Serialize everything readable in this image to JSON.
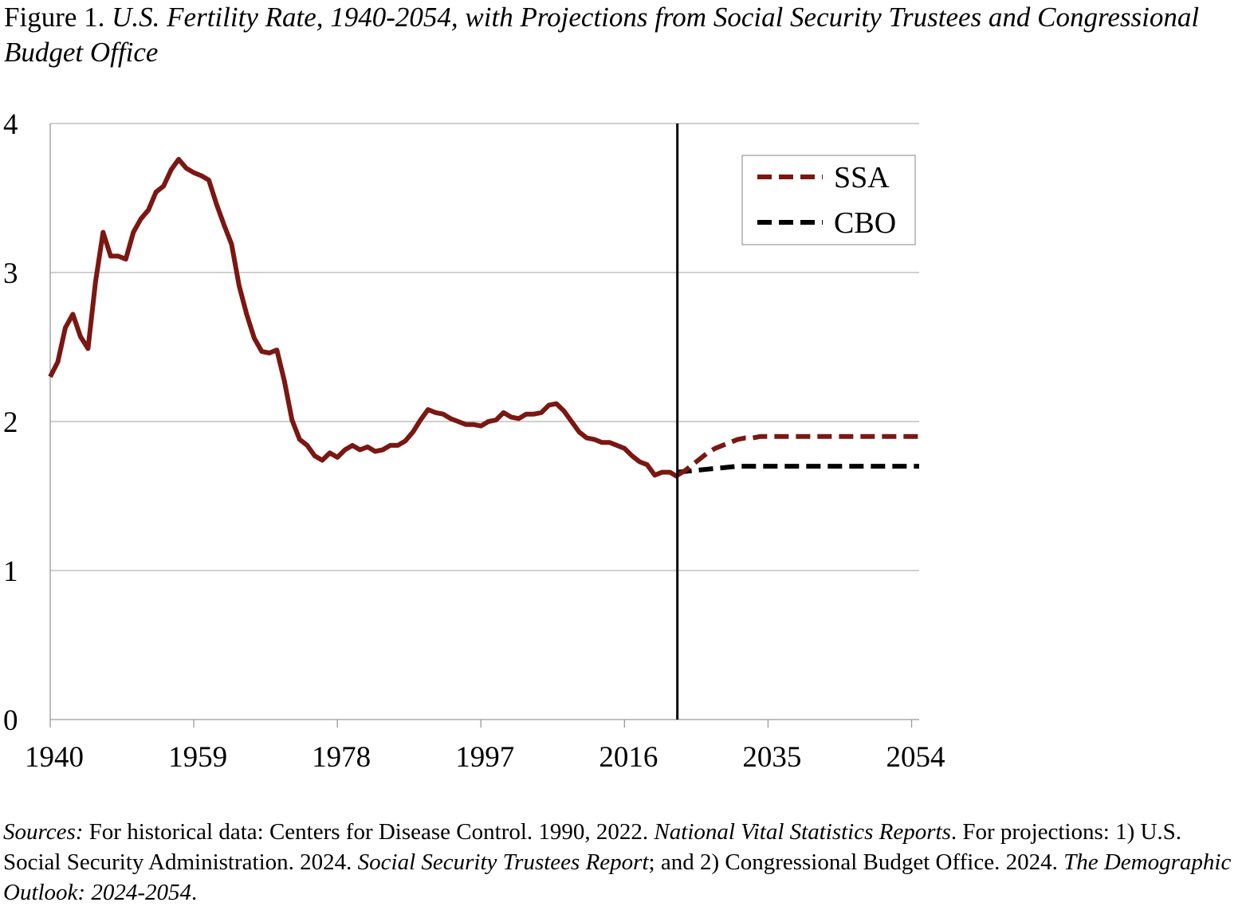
{
  "title": {
    "prefix": "Figure 1. ",
    "italic": "U.S. Fertility Rate, 1940-2054, with Projections from Social Security Trustees and Congressional Budget Office"
  },
  "sources": {
    "label": "Sources:",
    "t1": " For historical data: Centers for Disease Control. 1990, 2022. ",
    "i1": "National Vital Statistics Reports",
    "t2": ".  For projections: 1) U.S. Social Security Administration. 2024. ",
    "i2": "Social Security Trustees Report",
    "t3": "; and 2) Congressional Budget Office. 2024. ",
    "i3": "The Demographic Outlook: 2024-2054",
    "t4": "."
  },
  "chart_data": {
    "type": "line",
    "title": "U.S. Fertility Rate, 1940-2054, with Projections from Social Security Trustees and Congressional Budget Office",
    "xlabel": "",
    "ylabel": "",
    "xlim": [
      1940,
      2055
    ],
    "ylim": [
      0,
      4
    ],
    "x_ticks": [
      1940,
      1959,
      1978,
      1997,
      2016,
      2035,
      2054
    ],
    "y_ticks": [
      0,
      1,
      2,
      3,
      4
    ],
    "grid": "horizontal",
    "legend": "top-right",
    "vertical_marker_year": 2023,
    "colors": {
      "historical": "#7B1712",
      "ssa": "#7B1712",
      "cbo": "#000000",
      "grid": "#b3b3b3"
    },
    "series": [
      {
        "style": "solid",
        "x": [
          1940,
          1941,
          1942,
          1943,
          1944,
          1945,
          1946,
          1947,
          1948,
          1949,
          1950,
          1951,
          1952,
          1953,
          1954,
          1955,
          1956,
          1957,
          1958,
          1959,
          1960,
          1961,
          1962,
          1963,
          1964,
          1965,
          1966,
          1967,
          1968,
          1969,
          1970,
          1971,
          1972,
          1973,
          1974,
          1975,
          1976,
          1977,
          1978,
          1979,
          1980,
          1981,
          1982,
          1983,
          1984,
          1985,
          1986,
          1987,
          1988,
          1989,
          1990,
          1991,
          1992,
          1993,
          1994,
          1995,
          1996,
          1997,
          1998,
          1999,
          2000,
          2001,
          2002,
          2003,
          2004,
          2005,
          2006,
          2007,
          2008,
          2009,
          2010,
          2011,
          2012,
          2013,
          2014,
          2015,
          2016,
          2017,
          2018,
          2019,
          2020,
          2021,
          2022,
          2023
        ],
        "values": [
          2.3,
          2.4,
          2.63,
          2.72,
          2.57,
          2.49,
          2.94,
          3.27,
          3.11,
          3.11,
          3.09,
          3.27,
          3.36,
          3.42,
          3.54,
          3.58,
          3.69,
          3.76,
          3.7,
          3.67,
          3.65,
          3.62,
          3.46,
          3.32,
          3.19,
          2.91,
          2.72,
          2.56,
          2.47,
          2.46,
          2.48,
          2.27,
          2.01,
          1.88,
          1.84,
          1.77,
          1.74,
          1.79,
          1.76,
          1.81,
          1.84,
          1.81,
          1.83,
          1.8,
          1.81,
          1.84,
          1.84,
          1.87,
          1.93,
          2.01,
          2.08,
          2.06,
          2.05,
          2.02,
          2.0,
          1.98,
          1.98,
          1.97,
          2.0,
          2.01,
          2.06,
          2.03,
          2.02,
          2.05,
          2.05,
          2.06,
          2.11,
          2.12,
          2.07,
          2.0,
          1.93,
          1.89,
          1.88,
          1.86,
          1.86,
          1.84,
          1.82,
          1.77,
          1.73,
          1.71,
          1.64,
          1.66,
          1.66,
          1.63
        ]
      },
      {
        "name": "SSA",
        "style": "dashed",
        "x": [
          2023,
          2024,
          2025,
          2026,
          2027,
          2028,
          2029,
          2030,
          2031,
          2032,
          2033,
          2034,
          2035,
          2040,
          2045,
          2050,
          2055
        ],
        "values": [
          1.64,
          1.67,
          1.71,
          1.75,
          1.79,
          1.82,
          1.84,
          1.86,
          1.88,
          1.89,
          1.89,
          1.9,
          1.9,
          1.9,
          1.9,
          1.9,
          1.9
        ]
      },
      {
        "name": "CBO",
        "style": "dashed",
        "x": [
          2023,
          2025,
          2027,
          2029,
          2031,
          2033,
          2035,
          2040,
          2045,
          2050,
          2055
        ],
        "values": [
          1.66,
          1.67,
          1.68,
          1.69,
          1.7,
          1.7,
          1.7,
          1.7,
          1.7,
          1.7,
          1.7
        ]
      }
    ]
  }
}
